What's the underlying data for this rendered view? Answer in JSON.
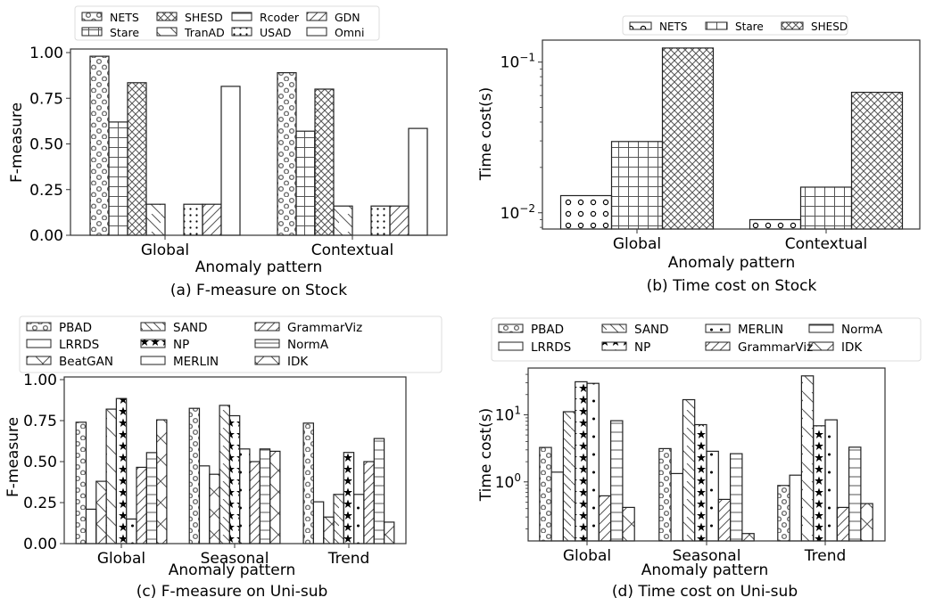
{
  "figure": {
    "panels": [
      "a",
      "b",
      "c",
      "d"
    ]
  },
  "chart_data": [
    {
      "id": "a",
      "type": "bar",
      "title": "(a) F-measure on Stock",
      "xlabel": "Anomaly pattern",
      "ylabel": "F-measure",
      "yscale": "linear",
      "ylim": [
        0,
        1.0
      ],
      "yticks": [
        0,
        0.25,
        0.5,
        0.75,
        1.0
      ],
      "ytick_labels": [
        "0.00",
        "0.25",
        "0.50",
        "0.75",
        "1.00"
      ],
      "categories": [
        "Global",
        "Contextual"
      ],
      "legend_position": "top",
      "legend_columns": 4,
      "series": [
        {
          "name": "NETS",
          "pattern": "circles",
          "values": [
            0.98,
            0.89
          ]
        },
        {
          "name": "Stare",
          "pattern": "grid",
          "values": [
            0.62,
            0.57
          ]
        },
        {
          "name": "SHESD",
          "pattern": "crosshatch",
          "values": [
            0.835,
            0.8
          ]
        },
        {
          "name": "TranAD",
          "pattern": "backslash",
          "values": [
            0.17,
            0.16
          ]
        },
        {
          "name": "Rcoder",
          "pattern": "hlines",
          "values": [
            0,
            0
          ]
        },
        {
          "name": "USAD",
          "pattern": "dots",
          "values": [
            0.17,
            0.16
          ]
        },
        {
          "name": "GDN",
          "pattern": "slash",
          "values": [
            0.17,
            0.16
          ]
        },
        {
          "name": "Omni",
          "pattern": "none",
          "values": [
            0.815,
            0.585
          ]
        }
      ]
    },
    {
      "id": "b",
      "type": "bar",
      "title": "(b) Time cost on Stock",
      "xlabel": "Anomaly pattern",
      "ylabel": "Time cost(s)",
      "yscale": "log",
      "ylim": [
        0.0078,
        0.14
      ],
      "yticks": [
        0.01,
        0.1
      ],
      "ytick_labels": [
        "10^-2",
        "10^-1"
      ],
      "categories": [
        "Global",
        "Contextual"
      ],
      "legend_position": "top",
      "legend_columns": 3,
      "series": [
        {
          "name": "NETS",
          "pattern": "circles-sparse",
          "values": [
            0.013,
            0.009
          ]
        },
        {
          "name": "Stare",
          "pattern": "grid",
          "values": [
            0.0297,
            0.0148
          ]
        },
        {
          "name": "SHESD",
          "pattern": "crosshatch",
          "values": [
            0.124,
            0.063
          ]
        }
      ]
    },
    {
      "id": "c",
      "type": "bar",
      "title": "(c) F-measure on Uni-sub",
      "xlabel": "Anomaly pattern",
      "ylabel": "F-measure",
      "yscale": "linear",
      "ylim": [
        0,
        1.0
      ],
      "yticks": [
        0,
        0.25,
        0.5,
        0.75,
        1.0
      ],
      "ytick_labels": [
        "0.00",
        "0.25",
        "0.50",
        "0.75",
        "1.00"
      ],
      "categories": [
        "Global",
        "Seasonal",
        "Trend"
      ],
      "legend_position": "top",
      "legend_columns": 4,
      "series": [
        {
          "name": "PBAD",
          "pattern": "circles",
          "values": [
            0.74,
            0.825,
            0.735
          ]
        },
        {
          "name": "LRRDS",
          "pattern": "none",
          "values": [
            0.21,
            0.474,
            0.255
          ]
        },
        {
          "name": "BeatGAN",
          "pattern": "xcross",
          "values": [
            0.38,
            0.423,
            0.162
          ]
        },
        {
          "name": "SAND",
          "pattern": "backslash",
          "values": [
            0.82,
            0.843,
            0.3
          ]
        },
        {
          "name": "NP",
          "pattern": "stars",
          "values": [
            0.885,
            0.78,
            0.556
          ]
        },
        {
          "name": "MERLIN",
          "pattern": "dots-sparse",
          "values": [
            0.15,
            0.577,
            0.3
          ]
        },
        {
          "name": "GrammarViz",
          "pattern": "slash",
          "values": [
            0.465,
            0.5,
            0.5
          ]
        },
        {
          "name": "NormA",
          "pattern": "hlines",
          "values": [
            0.555,
            0.577,
            0.641
          ]
        },
        {
          "name": "IDK",
          "pattern": "xcross",
          "values": [
            0.755,
            0.563,
            0.131
          ]
        }
      ]
    },
    {
      "id": "d",
      "type": "bar",
      "title": "(d) Time cost on Uni-sub",
      "xlabel": "Anomaly pattern",
      "ylabel": "Time cost(s)",
      "yscale": "log",
      "ylim": [
        0.132,
        49.7
      ],
      "yticks": [
        1,
        10
      ],
      "ytick_labels": [
        "10^0",
        "10^1"
      ],
      "categories": [
        "Global",
        "Seasonal",
        "Trend"
      ],
      "legend_position": "top",
      "legend_columns": 4,
      "series": [
        {
          "name": "PBAD",
          "pattern": "circles",
          "values": [
            3.26,
            3.13,
            0.885
          ]
        },
        {
          "name": "LRRDS",
          "pattern": "none",
          "values": [
            1.4,
            1.33,
            1.26
          ]
        },
        {
          "name": "SAND",
          "pattern": "backslash",
          "values": [
            11.1,
            16.8,
            38.0
          ]
        },
        {
          "name": "NP",
          "pattern": "stars",
          "values": [
            31.0,
            7.14,
            6.86
          ]
        },
        {
          "name": "MERLIN",
          "pattern": "dots-sparse",
          "values": [
            29.4,
            2.86,
            8.41
          ]
        },
        {
          "name": "GrammarViz",
          "pattern": "slash",
          "values": [
            0.62,
            0.548,
            0.417
          ]
        },
        {
          "name": "NormA",
          "pattern": "hlines",
          "values": [
            8.15,
            2.63,
            3.29
          ]
        },
        {
          "name": "IDK",
          "pattern": "xcross",
          "values": [
            0.417,
            0.17,
            0.475
          ]
        }
      ]
    }
  ]
}
